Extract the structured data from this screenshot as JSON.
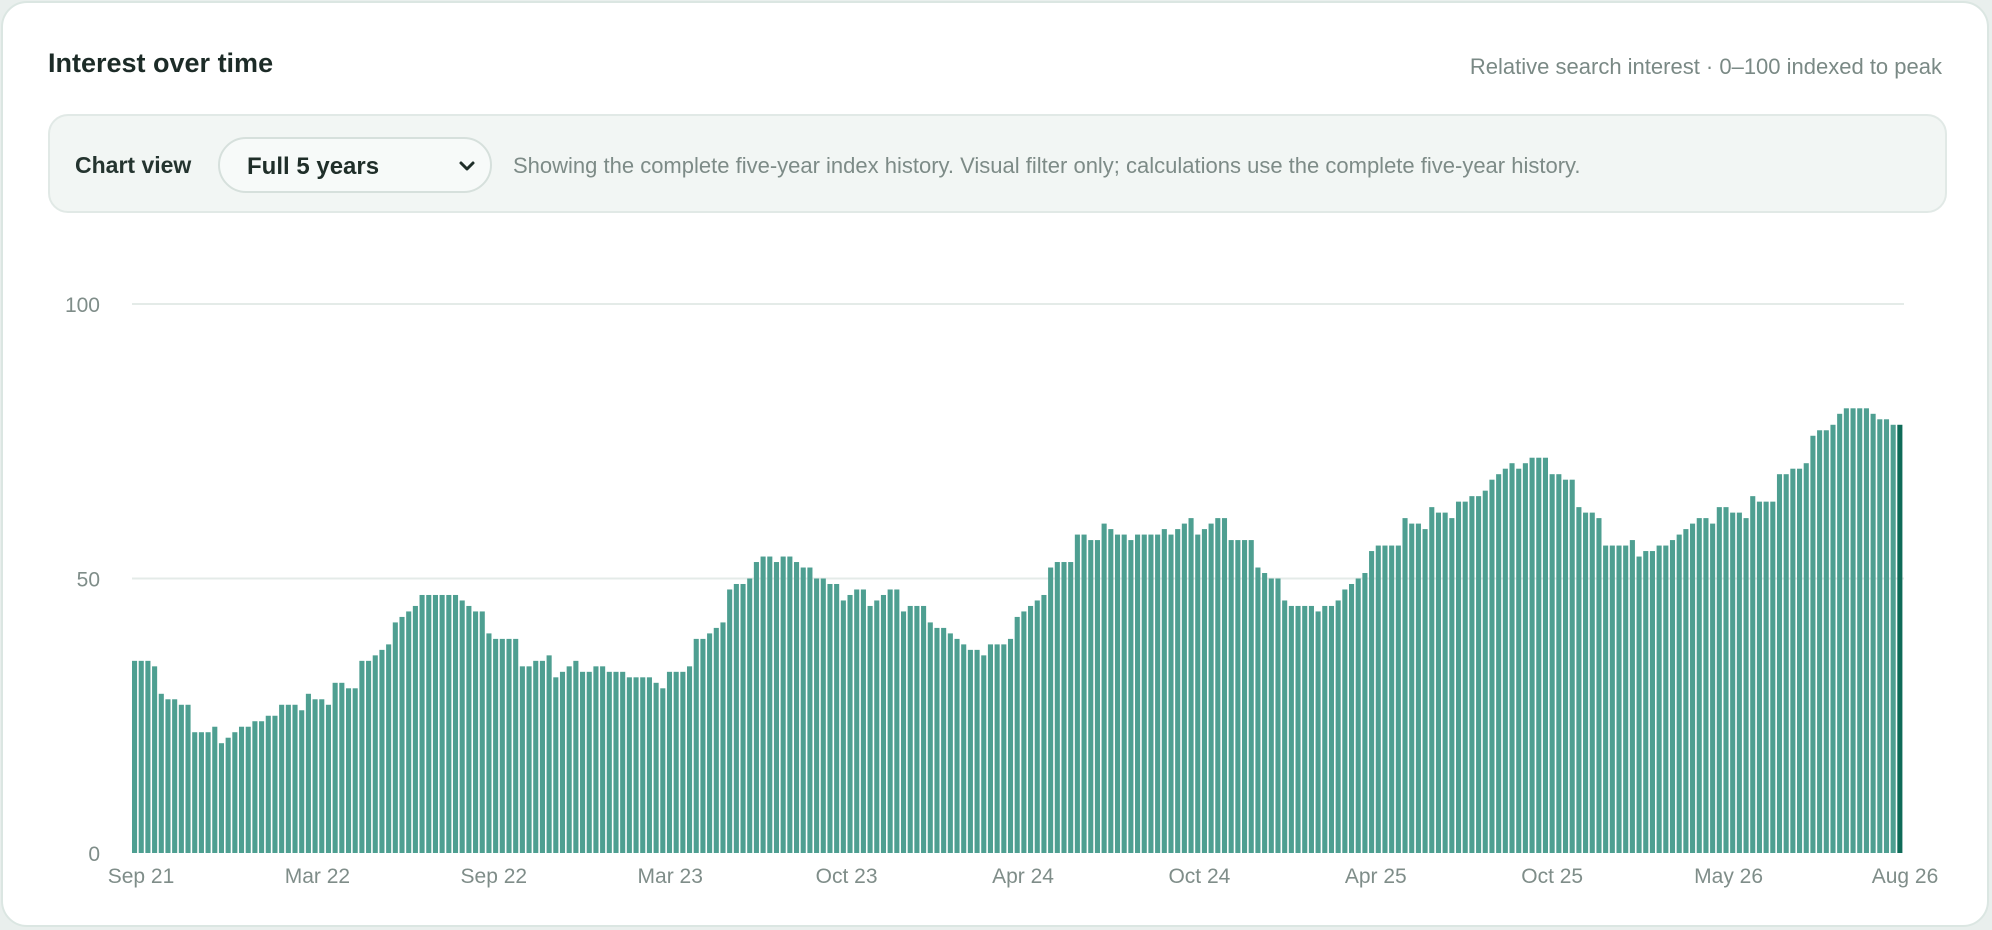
{
  "header": {
    "title": "Interest over time",
    "subtitle": "Relative search interest · 0–100 indexed to peak"
  },
  "controls": {
    "label": "Chart view",
    "select_value": "Full 5 years",
    "note": "Showing the complete five-year index history. Visual filter only; calculations use the complete five-year history."
  },
  "colors": {
    "bar": "#4e9f91",
    "last_bar": "#0f6b58",
    "grid": "#e4ebe8"
  },
  "chart_data": {
    "type": "bar",
    "title": "Interest over time",
    "ylim": [
      0,
      100
    ],
    "y_ticks": [
      0,
      50,
      100
    ],
    "grid": true,
    "x_tick_labels": [
      "Sep 21",
      "Mar 22",
      "Sep 22",
      "Mar 23",
      "Oct 23",
      "Apr 24",
      "Oct 24",
      "Apr 25",
      "Oct 25",
      "May 26",
      "Aug 26"
    ],
    "values": [
      35,
      35,
      35,
      34,
      29,
      28,
      28,
      27,
      27,
      22,
      22,
      22,
      23,
      20,
      21,
      22,
      23,
      23,
      24,
      24,
      25,
      25,
      27,
      27,
      27,
      26,
      29,
      28,
      28,
      27,
      31,
      31,
      30,
      30,
      35,
      35,
      36,
      37,
      38,
      42,
      43,
      44,
      45,
      47,
      47,
      47,
      47,
      47,
      47,
      46,
      45,
      44,
      44,
      40,
      39,
      39,
      39,
      39,
      34,
      34,
      35,
      35,
      36,
      32,
      33,
      34,
      35,
      33,
      33,
      34,
      34,
      33,
      33,
      33,
      32,
      32,
      32,
      32,
      31,
      30,
      33,
      33,
      33,
      34,
      39,
      39,
      40,
      41,
      42,
      48,
      49,
      49,
      50,
      53,
      54,
      54,
      53,
      54,
      54,
      53,
      52,
      52,
      50,
      50,
      49,
      49,
      46,
      47,
      48,
      48,
      45,
      46,
      47,
      48,
      48,
      44,
      45,
      45,
      45,
      42,
      41,
      41,
      40,
      39,
      38,
      37,
      37,
      36,
      38,
      38,
      38,
      39,
      43,
      44,
      45,
      46,
      47,
      52,
      53,
      53,
      53,
      58,
      58,
      57,
      57,
      60,
      59,
      58,
      58,
      57,
      58,
      58,
      58,
      58,
      59,
      58,
      59,
      60,
      61,
      58,
      59,
      60,
      61,
      61,
      57,
      57,
      57,
      57,
      52,
      51,
      50,
      50,
      46,
      45,
      45,
      45,
      45,
      44,
      45,
      45,
      46,
      48,
      49,
      50,
      51,
      55,
      56,
      56,
      56,
      56,
      61,
      60,
      60,
      59,
      63,
      62,
      62,
      61,
      64,
      64,
      65,
      65,
      66,
      68,
      69,
      70,
      71,
      70,
      71,
      72,
      72,
      72,
      69,
      69,
      68,
      68,
      63,
      62,
      62,
      61,
      56,
      56,
      56,
      56,
      57,
      54,
      55,
      55,
      56,
      56,
      57,
      58,
      59,
      60,
      61,
      61,
      60,
      63,
      63,
      62,
      62,
      61,
      65,
      64,
      64,
      64,
      69,
      69,
      70,
      70,
      71,
      76,
      77,
      77,
      78,
      80,
      81,
      81,
      81,
      81,
      80,
      79,
      79,
      78,
      78
    ]
  }
}
